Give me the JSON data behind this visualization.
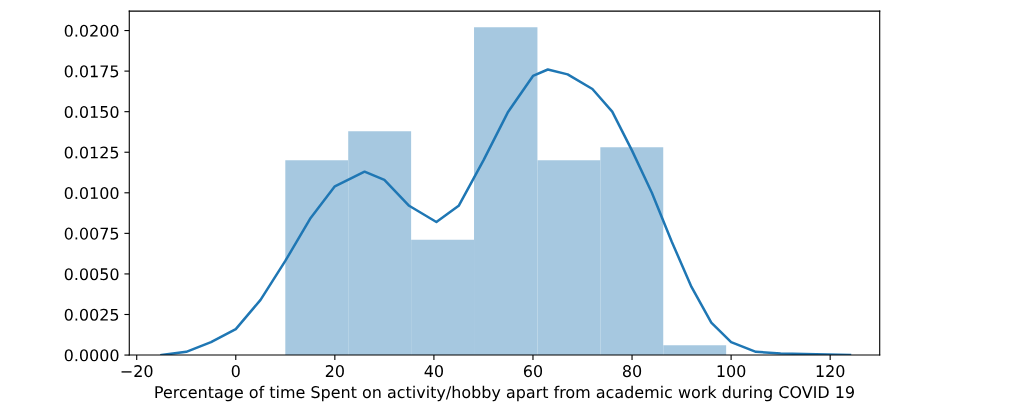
{
  "chart_data": {
    "type": "histogram",
    "xlabel": "Percentage of time Spent on activity/hobby apart from academic work during COVID 19",
    "series": [
      {
        "color": "#a6c8e0",
        "bins": [
          10,
          22.7,
          35.4,
          48.1,
          60.9,
          73.6,
          86.3,
          99
        ],
        "values": [
          0.012,
          0.0138,
          0.0071,
          0.0202,
          0.012,
          0.0128,
          0.0006
        ]
      },
      {
        "type": "line",
        "color": "#1f77b4",
        "x": [
          -15,
          -10,
          -5,
          0,
          5,
          10,
          15,
          20,
          26,
          30,
          35,
          40.5,
          45,
          50,
          55,
          60,
          63,
          67,
          72,
          76,
          80,
          84,
          88,
          92,
          96,
          100,
          105,
          110,
          124
        ],
        "values": [
          0,
          0.0002,
          0.0008,
          0.0016,
          0.0034,
          0.0058,
          0.0084,
          0.0104,
          0.0113,
          0.0108,
          0.0092,
          0.0082,
          0.0092,
          0.012,
          0.015,
          0.0172,
          0.0176,
          0.0173,
          0.0164,
          0.015,
          0.0126,
          0.01,
          0.007,
          0.0042,
          0.002,
          0.0008,
          0.0002,
          0.0001,
          0
        ]
      }
    ],
    "xlim": [
      -21.5,
      130
    ],
    "ylim": [
      0,
      0.0212
    ],
    "xticks": [
      {
        "value": -20,
        "label": "−20"
      },
      0,
      20,
      40,
      60,
      80,
      100,
      120
    ],
    "yticks": [
      {
        "value": 0,
        "label": "0.0000"
      },
      {
        "value": 0.0025,
        "label": "0.0025"
      },
      {
        "value": 0.005,
        "label": "0.0050"
      },
      {
        "value": 0.0075,
        "label": "0.0075"
      },
      {
        "value": 0.01,
        "label": "0.0100"
      },
      {
        "value": 0.0125,
        "label": "0.0125"
      },
      {
        "value": 0.015,
        "label": "0.0150"
      },
      {
        "value": 0.0175,
        "label": "0.0175"
      },
      {
        "value": 0.02,
        "label": "0.0200"
      }
    ],
    "grid": false
  }
}
